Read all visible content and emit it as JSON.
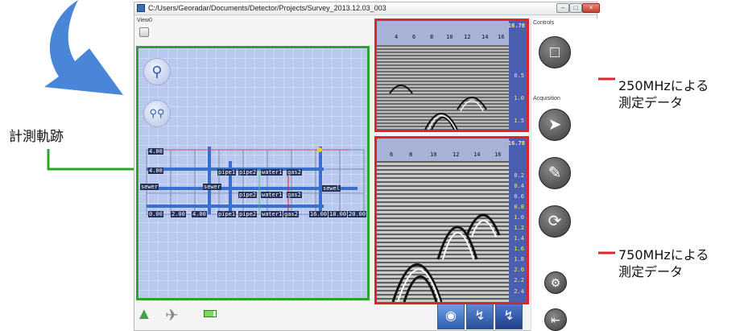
{
  "window": {
    "title": "C:/Users/Georadar/Documents/Detector/Projects/Survey_2013.12.03_003",
    "minimize_glyph": "–",
    "maximize_glyph": "□",
    "close_glyph": "×"
  },
  "view_panel": {
    "label": "View0"
  },
  "controls_panel": {
    "label": "Controls",
    "acquisition_label": "Acquisition"
  },
  "map": {
    "row_labels": [
      "4.00",
      "4.00",
      "sewer",
      "sewer",
      "sewel",
      "0.00",
      "2.00",
      "4.00"
    ],
    "pipe_labels_upper": [
      "pipe1",
      "pipe2",
      "water1",
      "gas2"
    ],
    "pipe_labels_mid": [
      "pipe2",
      "water1",
      "gas2"
    ],
    "pipe_labels_lower": [
      "pipe1",
      "pipe2",
      "water1",
      "gas2"
    ],
    "x_axis_right": [
      "16.00",
      "18.00",
      "20.00"
    ]
  },
  "radar_250": {
    "max_value": "16.78",
    "x_ticks": [
      "4",
      "6",
      "8",
      "10",
      "12",
      "14",
      "16"
    ],
    "depth_ticks": [
      "0.5",
      "1.0",
      "1.5"
    ]
  },
  "radar_750": {
    "max_value": "16.78",
    "x_ticks": [
      "6",
      "8",
      "10",
      "12",
      "14",
      "16"
    ],
    "depth_ticks": [
      "0.2",
      "0.4",
      "0.6",
      "0.8",
      "1.0",
      "1.2",
      "1.4",
      "1.6",
      "1.8",
      "2.0",
      "2.2",
      "2.4"
    ]
  },
  "annotations": {
    "track": "計測軌跡",
    "label_250_line1": "250MHzによる",
    "label_250_line2": "測定データ",
    "label_750_line1": "750MHzによる",
    "label_750_line2": "測定データ"
  },
  "colors": {
    "map_frame": "#2aa52a",
    "radar_frame": "#e0232a",
    "map_background": "#b8c8ee",
    "pipe_color": "#3a6fd0",
    "accent_arrow": "#4a86d8"
  },
  "icons": {
    "zoom_in": "search-icon",
    "zoom_out": "zoom-pair-icon",
    "record": "radar-record-icon",
    "pin": "pushpin-icon",
    "eraser": "eraser-icon",
    "refresh": "refresh-icon",
    "settings": "gear-icon",
    "exit": "exit-icon"
  }
}
